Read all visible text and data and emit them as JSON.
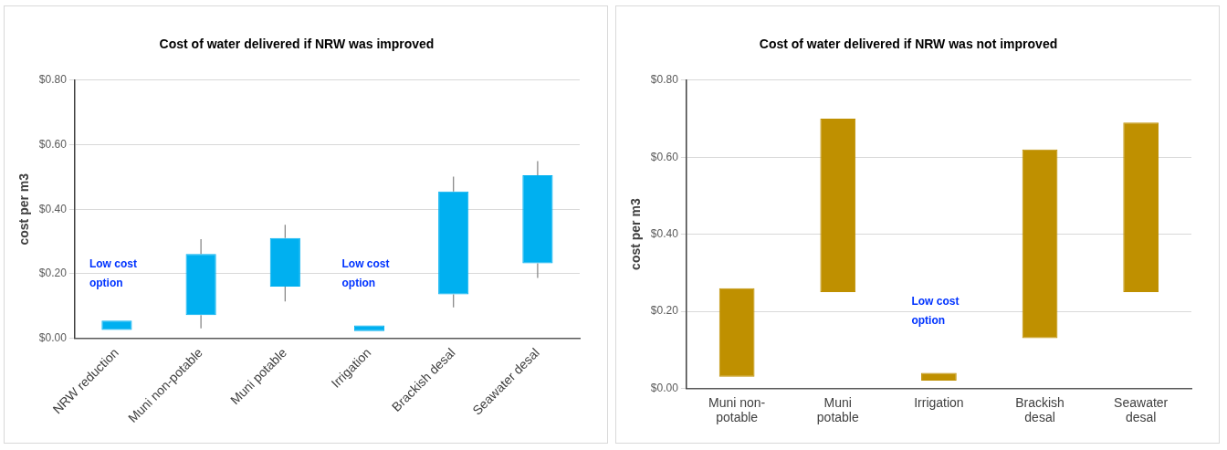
{
  "chart_data": [
    {
      "type": "candlestick",
      "title": "Cost of water delivered if NRW was improved",
      "ylabel": "cost per m3",
      "categories": [
        "NRW reduction",
        "Muni non-potable",
        "Muni potable",
        "Irrigation",
        "Brackish desal",
        "Seawater desal"
      ],
      "ohlc": [
        [
          0.026,
          0.055,
          0.026,
          0.055
        ],
        [
          0.072,
          0.307,
          0.031,
          0.261
        ],
        [
          0.16,
          0.352,
          0.114,
          0.311
        ],
        [
          0.022,
          0.04,
          0.022,
          0.04
        ],
        [
          0.136,
          0.501,
          0.096,
          0.455
        ],
        [
          0.232,
          0.549,
          0.187,
          0.505
        ]
      ],
      "color": "#00b0f0",
      "ylim": [
        0,
        0.8
      ],
      "yticks": [
        {
          "value": 0,
          "label": "$0.00"
        },
        {
          "value": 0.2,
          "label": "$0.20"
        },
        {
          "value": 0.4,
          "label": "$0.40"
        },
        {
          "value": 0.6,
          "label": "$0.60"
        },
        {
          "value": 0.8,
          "label": "$0.80"
        }
      ],
      "grid": "y",
      "legend": false,
      "annotations": [
        "Low cost option",
        "Low cost option"
      ]
    },
    {
      "type": "bar",
      "title": "Cost of water delivered if NRW was not improved",
      "ylabel": "cost per m3",
      "categories": [
        "Muni non-potable",
        "Muni potable",
        "Irrigation",
        "Brackish desal",
        "Seawater desal"
      ],
      "base": [
        0.03,
        0.25,
        0.02,
        0.13,
        0.25
      ],
      "values": [
        0.23,
        0.45,
        0.02,
        0.49,
        0.44
      ],
      "color": "#bf9000",
      "ylim": [
        0,
        0.8
      ],
      "yticks": [
        {
          "value": 0,
          "label": "$0.00"
        },
        {
          "value": 0.2,
          "label": "$0.20"
        },
        {
          "value": 0.4,
          "label": "$0.40"
        },
        {
          "value": 0.6,
          "label": "$0.60"
        },
        {
          "value": 0.8,
          "label": "$0.80"
        }
      ],
      "grid": "y",
      "legend": false,
      "annotations": [
        "Low cost option"
      ]
    }
  ]
}
